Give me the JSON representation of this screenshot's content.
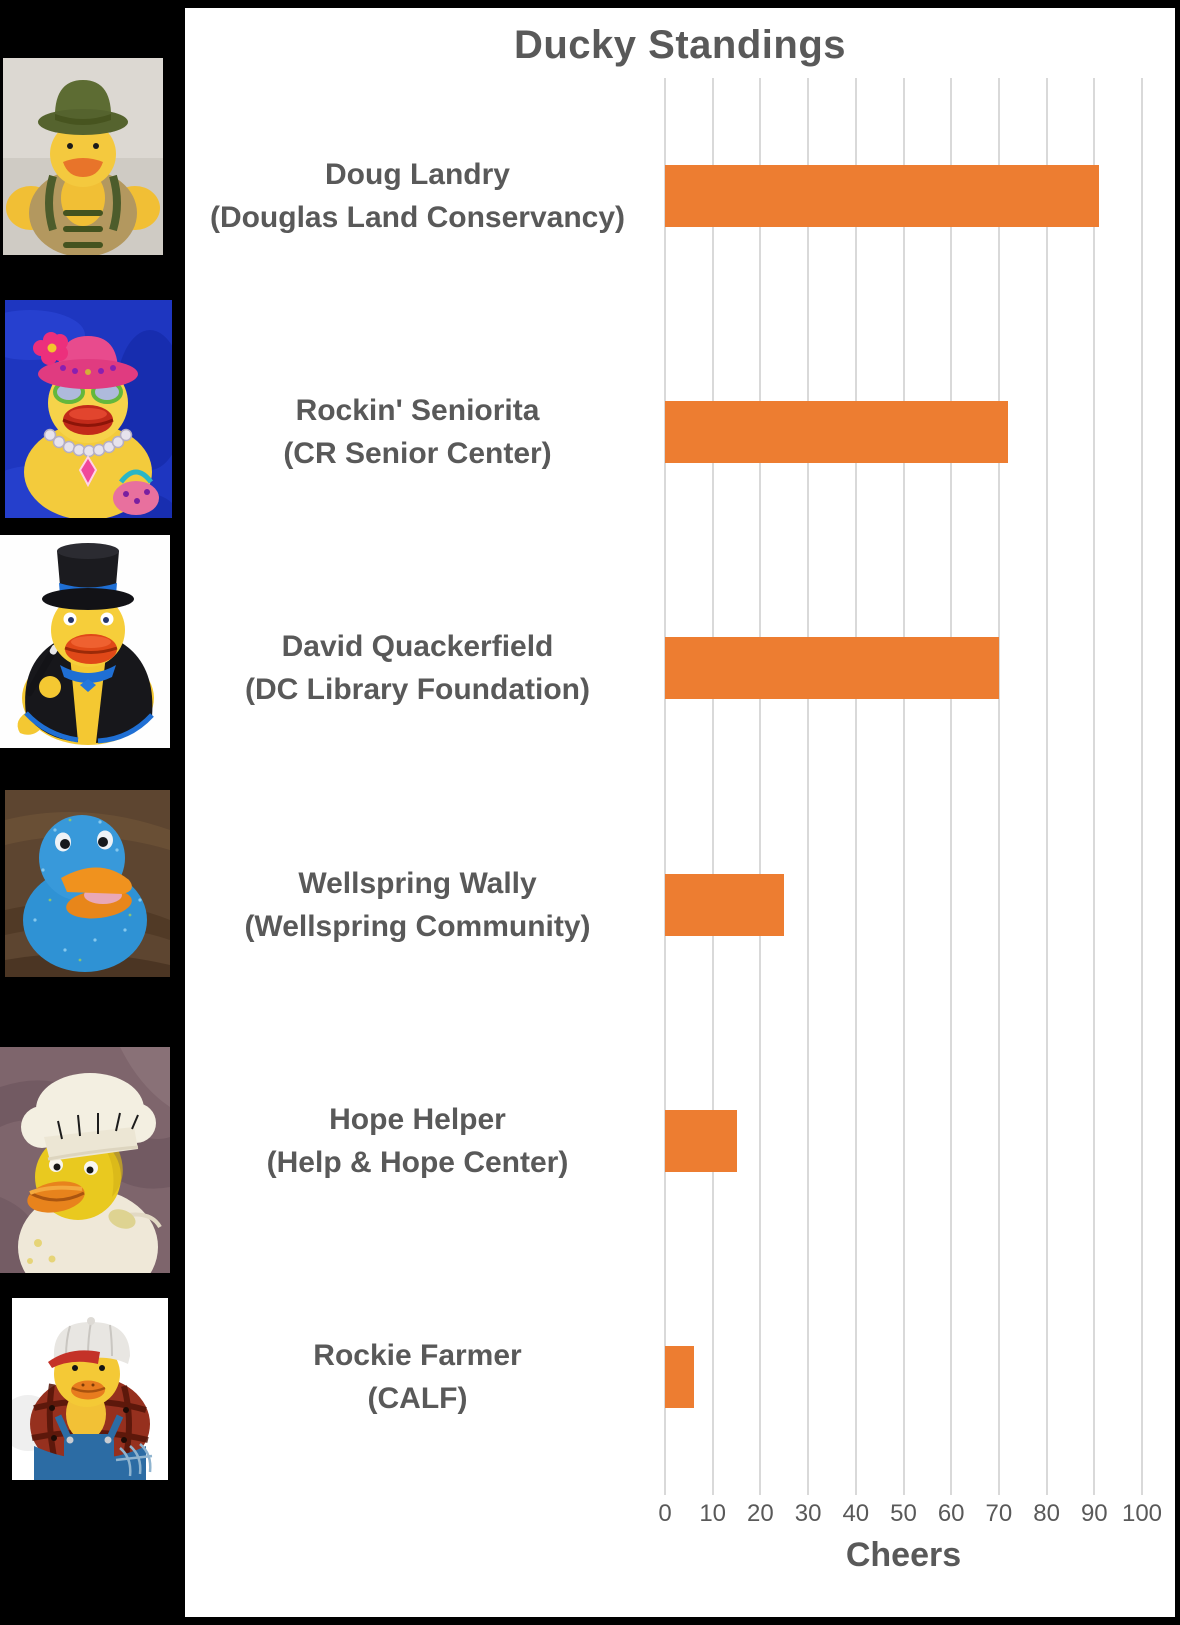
{
  "colors": {
    "page_background": "#000000",
    "panel_background": "#FFFFFF",
    "bar": "#ED7D31",
    "gridline": "#D9D9D9",
    "text": "#595959"
  },
  "chart_data": {
    "type": "bar",
    "orientation": "horizontal",
    "title": "Ducky Standings",
    "xlabel": "Cheers",
    "ylabel": "",
    "xlim": [
      0,
      100
    ],
    "x_ticks": [
      0,
      10,
      20,
      30,
      40,
      50,
      60,
      70,
      80,
      90,
      100
    ],
    "grid": true,
    "legend": false,
    "categories": [
      "Doug Landry\n(Douglas Land Conservancy)",
      "Rockin' Seniorita\n(CR Senior Center)",
      "David Quackerfield\n(DC Library Foundation)",
      "Wellspring Wally\n(Wellspring Community)",
      "Hope Helper\n(Help & Hope Center)",
      "Rockie Farmer\n(CALF)"
    ],
    "values": [
      91,
      72,
      70,
      25,
      15,
      6
    ]
  },
  "ducks": [
    {
      "name": "doug-landry-duck-photo",
      "alt": "Rubber duck wearing a green fishing hat and tan angler vest"
    },
    {
      "name": "rockin-seniorita-duck-photo",
      "alt": "Rubber duck in a pink flowered hat, sunglasses and pearl necklace on a blue towel"
    },
    {
      "name": "david-quackerfield-duck-photo",
      "alt": "Rubber duck in a black top hat and magician cape holding a wand"
    },
    {
      "name": "wellspring-wally-duck-photo",
      "alt": "Blue glitter rubber duck on a wooden table"
    },
    {
      "name": "hope-helper-duck-photo",
      "alt": "Rubber duck in a white chef hat on mauve fabric"
    },
    {
      "name": "rockie-farmer-duck-photo",
      "alt": "Rubber duck in a trucker cap, plaid shirt and blue overalls"
    }
  ]
}
